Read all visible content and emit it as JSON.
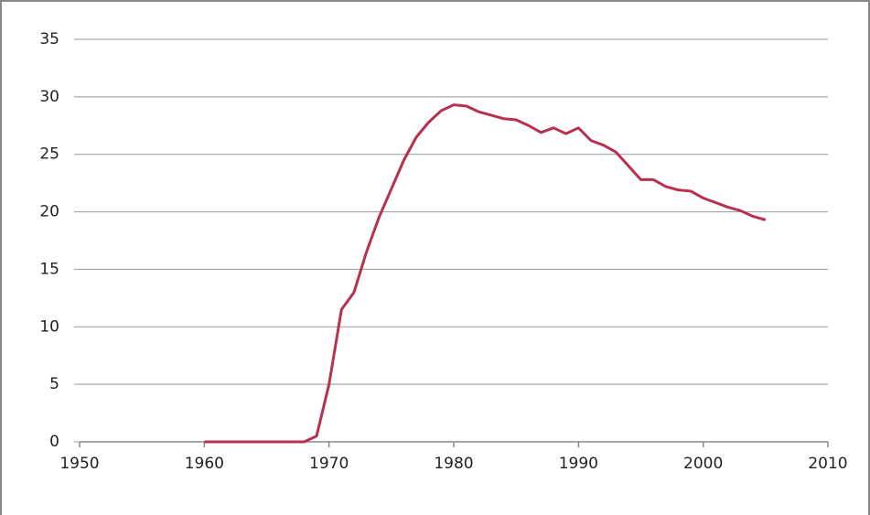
{
  "chart_data": {
    "type": "line",
    "x": [
      1960,
      1968,
      1969,
      1970,
      1971,
      1972,
      1973,
      1974,
      1975,
      1976,
      1977,
      1978,
      1979,
      1980,
      1981,
      1982,
      1983,
      1984,
      1985,
      1986,
      1987,
      1988,
      1989,
      1990,
      1991,
      1992,
      1993,
      1994,
      1995,
      1996,
      1997,
      1998,
      1999,
      2000,
      2001,
      2002,
      2003,
      2004,
      2005
    ],
    "series": [
      {
        "color": "#b83050",
        "values": [
          0,
          0,
          0.5,
          5,
          11.5,
          13,
          16.5,
          19.5,
          22,
          24.5,
          26.5,
          27.8,
          28.8,
          29.3,
          29.2,
          28.7,
          28.4,
          28.1,
          28,
          27.5,
          26.9,
          27.3,
          26.8,
          27.3,
          26.2,
          25.8,
          25.2,
          24,
          22.8,
          22.8,
          22.2,
          21.9,
          21.8,
          21.2,
          20.8,
          20.4,
          20.1,
          19.6,
          19.3
        ]
      }
    ],
    "xlim": [
      1950,
      2010
    ],
    "xticks": [
      1950,
      1960,
      1970,
      1980,
      1990,
      2000,
      2010
    ],
    "ylim": [
      0,
      35
    ],
    "yticks": [
      0,
      5,
      10,
      15,
      20,
      25,
      30,
      35
    ],
    "grid": true
  }
}
